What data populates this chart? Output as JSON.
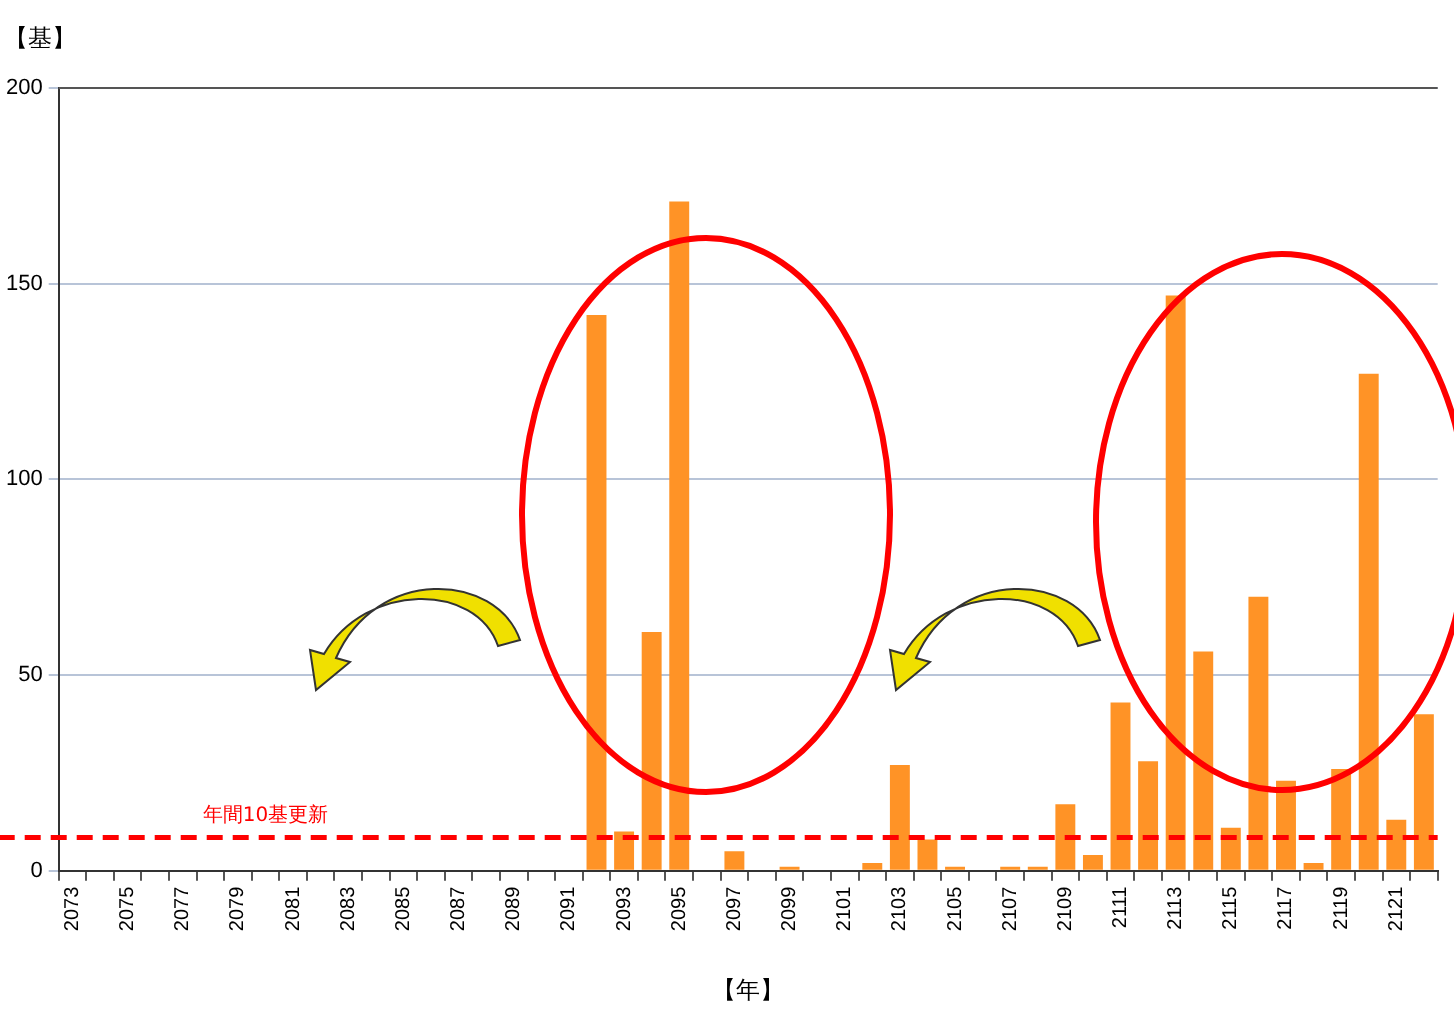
{
  "chart_data": {
    "type": "bar",
    "xlabel": "【年】",
    "ylabel": "【基】",
    "categories": [
      "2073",
      null,
      "2075",
      null,
      "2077",
      null,
      "2079",
      null,
      "2081",
      null,
      "2083",
      null,
      "2085",
      null,
      "2087",
      null,
      "2089",
      null,
      "2091",
      null,
      "2093",
      null,
      "2095",
      null,
      "2097",
      null,
      "2099",
      null,
      "2101",
      null,
      "2103",
      null,
      "2105",
      null,
      "2107",
      null,
      "2109",
      null,
      "2111",
      null,
      "2113",
      null,
      "2115",
      null,
      "2117",
      null,
      "2119",
      null,
      "2121",
      null
    ],
    "values": [
      0,
      0,
      0,
      0,
      0,
      0,
      0,
      0,
      0,
      0,
      0,
      0,
      0,
      0,
      0,
      0,
      0,
      0,
      0,
      142,
      10,
      61,
      171,
      0,
      5,
      0,
      1,
      0,
      0,
      2,
      27,
      8,
      1,
      0,
      1,
      1,
      17,
      4,
      43,
      28,
      147,
      56,
      11,
      70,
      23,
      2,
      26,
      127,
      13,
      40
    ],
    "color": "#ff9326",
    "ylim": [
      0,
      200
    ],
    "yticks": [
      0,
      50,
      100,
      150,
      200
    ],
    "grid": "y",
    "legend": false,
    "ref_lines": [
      {
        "axis": "y",
        "value": 8.5,
        "label": "年間10基更新",
        "color": "#ff0000",
        "line_style": "dashed"
      }
    ]
  }
}
